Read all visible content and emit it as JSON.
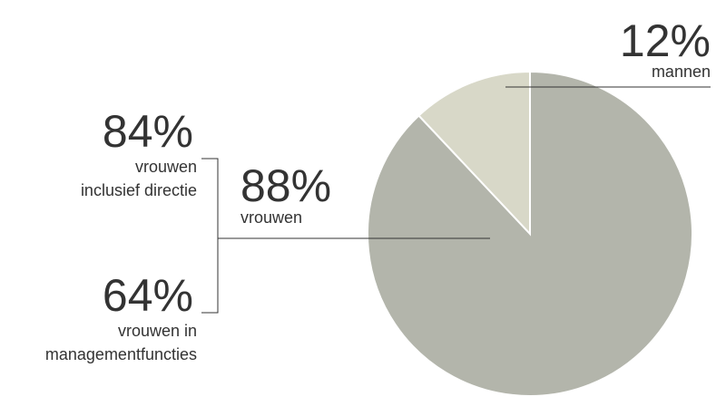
{
  "chart_data": {
    "type": "pie",
    "categories": [
      "vrouwen",
      "mannen"
    ],
    "values": [
      88,
      12
    ],
    "value_labels": [
      "88%",
      "12%"
    ],
    "colors": [
      "#b3b5ab",
      "#d8d8c8"
    ],
    "annotations": [
      {
        "value": 84,
        "label": "84%",
        "lines": [
          "vrouwen",
          "inclusief directie"
        ]
      },
      {
        "value": 64,
        "label": "64%",
        "lines": [
          "vrouwen in",
          "managementfuncties"
        ]
      }
    ]
  }
}
